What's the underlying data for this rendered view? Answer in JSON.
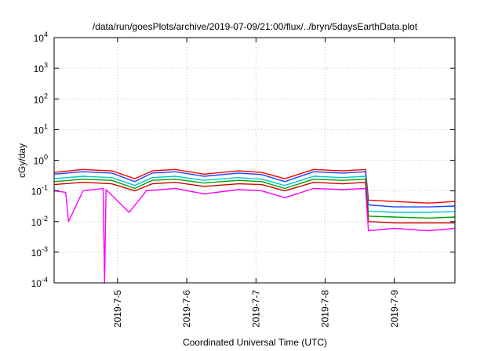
{
  "chart_data": {
    "type": "line",
    "title": "/data/run/goesPlots/archive/2019-07-09/21:00/flux/../bryn/5daysEarthData.plot",
    "xlabel": "Coordinated Universal Time (UTC)",
    "ylabel": "cGy/day",
    "x_scale": "time",
    "y_scale": "log",
    "xlim": [
      "2019-07-04T02:00",
      "2019-07-09T21:00"
    ],
    "ylim": [
      0.0001,
      10000
    ],
    "x_ticks": [
      "2019-7-5",
      "2019-7-6",
      "2019-7-7",
      "2019-7-8",
      "2019-7-9"
    ],
    "y_ticks": [
      {
        "base": "10",
        "exp": "-4",
        "value": 0.0001
      },
      {
        "base": "10",
        "exp": "-3",
        "value": 0.001
      },
      {
        "base": "10",
        "exp": "-2",
        "value": 0.01
      },
      {
        "base": "10",
        "exp": "-1",
        "value": 0.1
      },
      {
        "base": "10",
        "exp": "0",
        "value": 1
      },
      {
        "base": "10",
        "exp": "1",
        "value": 10
      },
      {
        "base": "10",
        "exp": "2",
        "value": 100
      },
      {
        "base": "10",
        "exp": "3",
        "value": 1000
      },
      {
        "base": "10",
        "exp": "4",
        "value": 10000
      }
    ],
    "grid": true,
    "legend": "none",
    "series": [
      {
        "color": "#ff0000",
        "x": [
          "2019-07-04T02:00",
          "2019-07-04T12:00",
          "2019-07-04T22:00",
          "2019-07-05T06:00",
          "2019-07-05T12:00",
          "2019-07-05T20:00",
          "2019-07-06T06:00",
          "2019-07-06T18:00",
          "2019-07-07T02:00",
          "2019-07-07T10:00",
          "2019-07-07T20:00",
          "2019-07-08T06:00",
          "2019-07-08T14:00",
          "2019-07-08T15:00",
          "2019-07-09T00:00",
          "2019-07-09T12:00",
          "2019-07-09T21:00"
        ],
        "y": [
          0.4,
          0.5,
          0.45,
          0.25,
          0.45,
          0.5,
          0.35,
          0.45,
          0.4,
          0.25,
          0.5,
          0.45,
          0.5,
          0.05,
          0.045,
          0.04,
          0.045
        ]
      },
      {
        "color": "#1f3fff",
        "x": [
          "2019-07-04T02:00",
          "2019-07-04T12:00",
          "2019-07-04T22:00",
          "2019-07-05T06:00",
          "2019-07-05T12:00",
          "2019-07-05T20:00",
          "2019-07-06T06:00",
          "2019-07-06T18:00",
          "2019-07-07T02:00",
          "2019-07-07T10:00",
          "2019-07-07T20:00",
          "2019-07-08T06:00",
          "2019-07-08T14:00",
          "2019-07-08T15:00",
          "2019-07-09T00:00",
          "2019-07-09T12:00",
          "2019-07-09T21:00"
        ],
        "y": [
          0.35,
          0.42,
          0.38,
          0.2,
          0.38,
          0.42,
          0.3,
          0.38,
          0.34,
          0.2,
          0.42,
          0.38,
          0.42,
          0.035,
          0.03,
          0.03,
          0.032
        ]
      },
      {
        "color": "#00c8c8",
        "x": [
          "2019-07-04T02:00",
          "2019-07-04T12:00",
          "2019-07-04T22:00",
          "2019-07-05T06:00",
          "2019-07-05T12:00",
          "2019-07-05T20:00",
          "2019-07-06T06:00",
          "2019-07-06T18:00",
          "2019-07-07T02:00",
          "2019-07-07T10:00",
          "2019-07-07T20:00",
          "2019-07-08T06:00",
          "2019-07-08T14:00",
          "2019-07-08T15:00",
          "2019-07-09T00:00",
          "2019-07-09T12:00",
          "2019-07-09T21:00"
        ],
        "y": [
          0.25,
          0.3,
          0.27,
          0.15,
          0.27,
          0.3,
          0.22,
          0.27,
          0.24,
          0.15,
          0.3,
          0.27,
          0.3,
          0.022,
          0.02,
          0.02,
          0.021
        ]
      },
      {
        "color": "#00a000",
        "x": [
          "2019-07-04T02:00",
          "2019-07-04T12:00",
          "2019-07-04T22:00",
          "2019-07-05T06:00",
          "2019-07-05T12:00",
          "2019-07-05T20:00",
          "2019-07-06T06:00",
          "2019-07-06T18:00",
          "2019-07-07T02:00",
          "2019-07-07T10:00",
          "2019-07-07T20:00",
          "2019-07-08T06:00",
          "2019-07-08T14:00",
          "2019-07-08T15:00",
          "2019-07-09T00:00",
          "2019-07-09T12:00",
          "2019-07-09T21:00"
        ],
        "y": [
          0.2,
          0.24,
          0.22,
          0.12,
          0.22,
          0.24,
          0.18,
          0.22,
          0.2,
          0.12,
          0.24,
          0.22,
          0.24,
          0.015,
          0.014,
          0.013,
          0.014
        ]
      },
      {
        "color": "#c80000",
        "x": [
          "2019-07-04T02:00",
          "2019-07-04T12:00",
          "2019-07-04T22:00",
          "2019-07-05T06:00",
          "2019-07-05T12:00",
          "2019-07-05T20:00",
          "2019-07-06T06:00",
          "2019-07-06T18:00",
          "2019-07-07T02:00",
          "2019-07-07T10:00",
          "2019-07-07T20:00",
          "2019-07-08T06:00",
          "2019-07-08T14:00",
          "2019-07-08T15:00",
          "2019-07-09T00:00",
          "2019-07-09T12:00",
          "2019-07-09T21:00"
        ],
        "y": [
          0.16,
          0.19,
          0.17,
          0.1,
          0.17,
          0.19,
          0.14,
          0.17,
          0.16,
          0.1,
          0.19,
          0.17,
          0.19,
          0.01,
          0.009,
          0.009,
          0.009
        ]
      },
      {
        "color": "#ff00ff",
        "x": [
          "2019-07-04T02:00",
          "2019-07-04T06:00",
          "2019-07-04T07:00",
          "2019-07-04T12:00",
          "2019-07-04T19:00",
          "2019-07-04T19:30",
          "2019-07-04T20:00",
          "2019-07-05T04:00",
          "2019-07-05T10:00",
          "2019-07-05T20:00",
          "2019-07-06T06:00",
          "2019-07-06T18:00",
          "2019-07-07T02:00",
          "2019-07-07T10:00",
          "2019-07-07T20:00",
          "2019-07-08T06:00",
          "2019-07-08T14:00",
          "2019-07-08T15:00",
          "2019-07-09T00:00",
          "2019-07-09T12:00",
          "2019-07-09T21:00"
        ],
        "y": [
          0.1,
          0.09,
          0.01,
          0.1,
          0.12,
          0.0001,
          0.11,
          0.02,
          0.1,
          0.12,
          0.08,
          0.11,
          0.1,
          0.06,
          0.12,
          0.11,
          0.12,
          0.005,
          0.006,
          0.005,
          0.006
        ]
      }
    ]
  }
}
